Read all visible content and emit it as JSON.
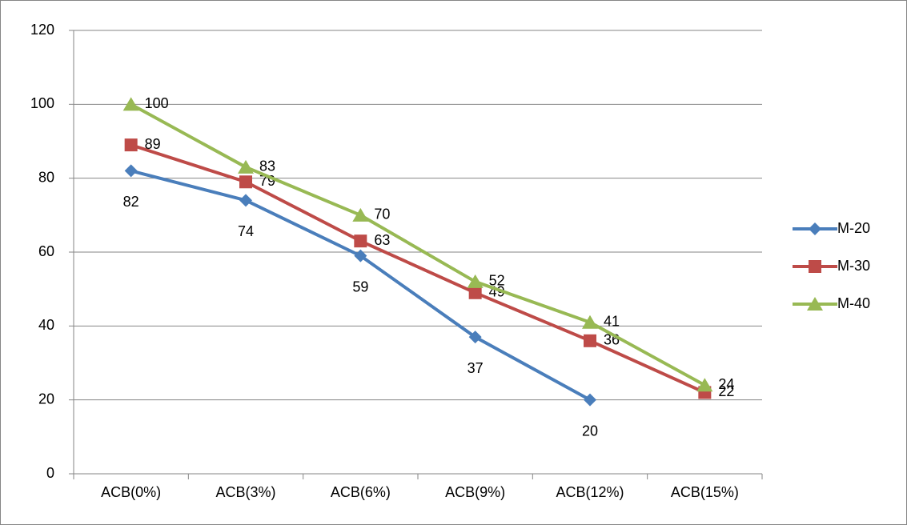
{
  "chart_data": {
    "type": "line",
    "categories": [
      "ACB(0%)",
      "ACB(3%)",
      "ACB(6%)",
      "ACB(9%)",
      "ACB(12%)",
      "ACB(15%)"
    ],
    "series": [
      {
        "name": "M-20",
        "color": "#4a7ebb",
        "marker": "diamond",
        "values": [
          82,
          74,
          59,
          37,
          20,
          null
        ]
      },
      {
        "name": "M-30",
        "color": "#be4b48",
        "marker": "square",
        "values": [
          89,
          79,
          63,
          49,
          36,
          22
        ]
      },
      {
        "name": "M-40",
        "color": "#98b954",
        "marker": "triangle",
        "values": [
          100,
          83,
          70,
          52,
          41,
          24
        ]
      }
    ],
    "ylim": [
      0,
      120
    ],
    "yticks": [
      0,
      20,
      40,
      60,
      80,
      100,
      120
    ],
    "grid": true,
    "legend": "right"
  }
}
